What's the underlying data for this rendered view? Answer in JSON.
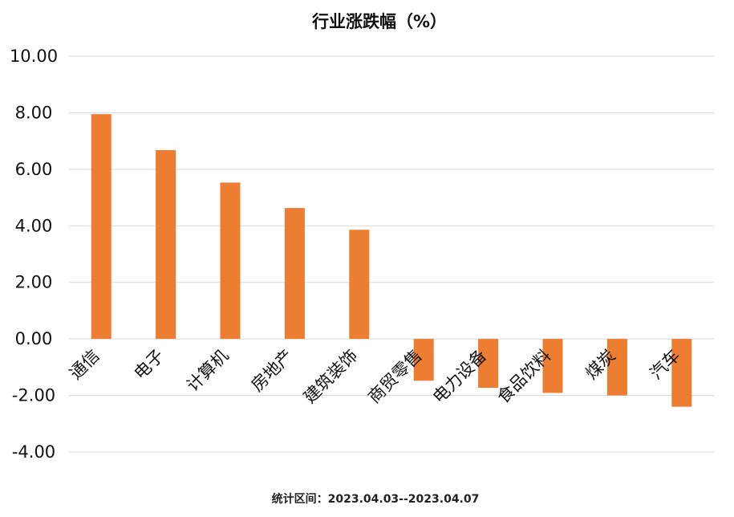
{
  "chart_data": {
    "type": "bar",
    "title": "行业涨跌幅（%）",
    "categories": [
      "通信",
      "电子",
      "计算机",
      "房地产",
      "建筑装饰",
      "商贸零售",
      "电力设备",
      "食品饮料",
      "煤炭",
      "汽车"
    ],
    "series": [
      {
        "values": [
          7.95,
          6.68,
          5.53,
          4.63,
          3.86,
          -1.48,
          -1.73,
          -1.91,
          -2.0,
          -2.4
        ]
      }
    ],
    "ylim": [
      -4,
      10
    ],
    "yticks": [
      10,
      8,
      6,
      4,
      2,
      0,
      -2,
      -4
    ],
    "ytick_decimals": 2,
    "grid": true,
    "legend": "none",
    "bar_color": "#ed7d31",
    "footer": "统计区间：2023.04.03--2023.04.07"
  }
}
